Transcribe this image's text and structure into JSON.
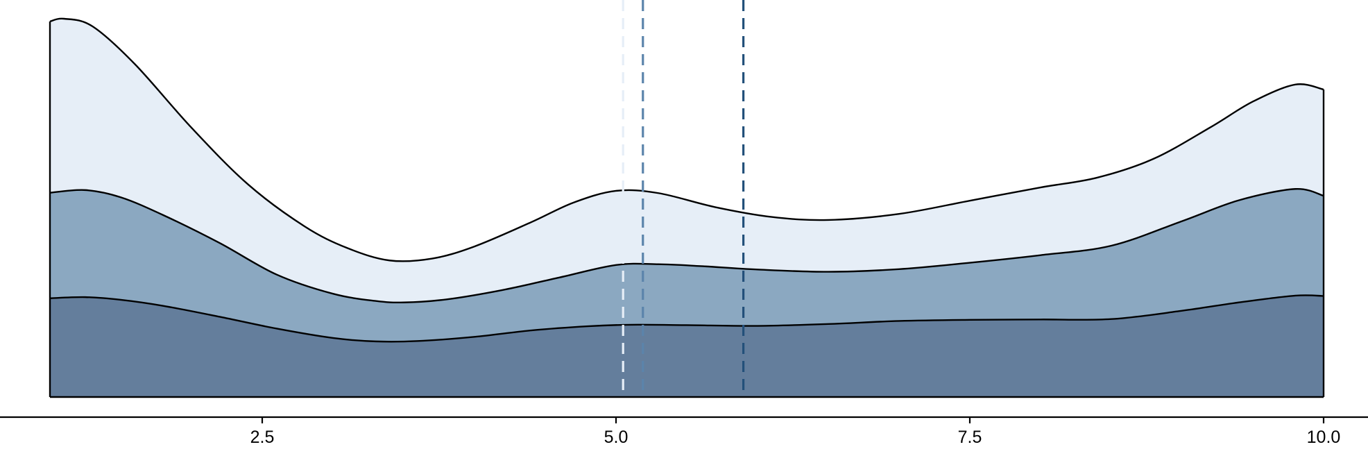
{
  "chart_data": {
    "type": "area",
    "stacked": true,
    "x_range": [
      1.0,
      10.0
    ],
    "y_range": [
      0.0,
      1.0
    ],
    "x_ticks": [
      {
        "value": 2.5,
        "label": "2.5"
      },
      {
        "value": 5.0,
        "label": "5.0"
      },
      {
        "value": 7.5,
        "label": "7.5"
      },
      {
        "value": 10.0,
        "label": "10.0"
      }
    ],
    "axis_line": "bottom",
    "grid": false,
    "legend": "none",
    "series": [
      {
        "color": "#647e9c",
        "points": [
          [
            1.0,
            0.261
          ],
          [
            1.25,
            0.264
          ],
          [
            1.5,
            0.257
          ],
          [
            1.8,
            0.241
          ],
          [
            2.2,
            0.212
          ],
          [
            2.6,
            0.181
          ],
          [
            3.0,
            0.156
          ],
          [
            3.3,
            0.147
          ],
          [
            3.6,
            0.148
          ],
          [
            4.0,
            0.159
          ],
          [
            4.4,
            0.176
          ],
          [
            4.8,
            0.187
          ],
          [
            5.1,
            0.191
          ],
          [
            5.5,
            0.19
          ],
          [
            6.0,
            0.188
          ],
          [
            6.5,
            0.193
          ],
          [
            7.0,
            0.201
          ],
          [
            7.5,
            0.204
          ],
          [
            8.0,
            0.205
          ],
          [
            8.5,
            0.206
          ],
          [
            9.0,
            0.228
          ],
          [
            9.4,
            0.25
          ],
          [
            9.8,
            0.268
          ],
          [
            10.0,
            0.267
          ]
        ]
      },
      {
        "color": "#8ba8c1",
        "points": [
          [
            1.0,
            0.54
          ],
          [
            1.25,
            0.547
          ],
          [
            1.5,
            0.528
          ],
          [
            1.8,
            0.481
          ],
          [
            2.2,
            0.407
          ],
          [
            2.6,
            0.324
          ],
          [
            3.0,
            0.273
          ],
          [
            3.3,
            0.254
          ],
          [
            3.5,
            0.25
          ],
          [
            3.8,
            0.258
          ],
          [
            4.2,
            0.283
          ],
          [
            4.6,
            0.316
          ],
          [
            5.0,
            0.349
          ],
          [
            5.3,
            0.351
          ],
          [
            5.6,
            0.346
          ],
          [
            6.0,
            0.337
          ],
          [
            6.5,
            0.331
          ],
          [
            7.0,
            0.338
          ],
          [
            7.5,
            0.355
          ],
          [
            8.0,
            0.375
          ],
          [
            8.5,
            0.4
          ],
          [
            9.0,
            0.465
          ],
          [
            9.4,
            0.52
          ],
          [
            9.8,
            0.55
          ],
          [
            10.0,
            0.532
          ]
        ]
      },
      {
        "color": "#e6eef7",
        "points": [
          [
            1.0,
            0.993
          ],
          [
            1.1,
            1.0
          ],
          [
            1.3,
            0.98
          ],
          [
            1.6,
            0.88
          ],
          [
            2.0,
            0.712
          ],
          [
            2.4,
            0.562
          ],
          [
            2.8,
            0.451
          ],
          [
            3.1,
            0.394
          ],
          [
            3.4,
            0.361
          ],
          [
            3.7,
            0.366
          ],
          [
            4.0,
            0.398
          ],
          [
            4.4,
            0.462
          ],
          [
            4.7,
            0.514
          ],
          [
            5.0,
            0.545
          ],
          [
            5.3,
            0.539
          ],
          [
            5.7,
            0.502
          ],
          [
            6.1,
            0.476
          ],
          [
            6.5,
            0.468
          ],
          [
            7.0,
            0.484
          ],
          [
            7.5,
            0.519
          ],
          [
            8.0,
            0.554
          ],
          [
            8.4,
            0.58
          ],
          [
            8.8,
            0.63
          ],
          [
            9.2,
            0.713
          ],
          [
            9.5,
            0.781
          ],
          [
            9.8,
            0.826
          ],
          [
            10.0,
            0.813
          ]
        ]
      }
    ],
    "reference_lines": [
      {
        "x": 5.05,
        "color": "#e6eef7",
        "style": "dashed"
      },
      {
        "x": 5.19,
        "color": "#5b84ab",
        "style": "dashed"
      },
      {
        "x": 5.9,
        "color": "#23507a",
        "style": "dashed"
      }
    ]
  }
}
